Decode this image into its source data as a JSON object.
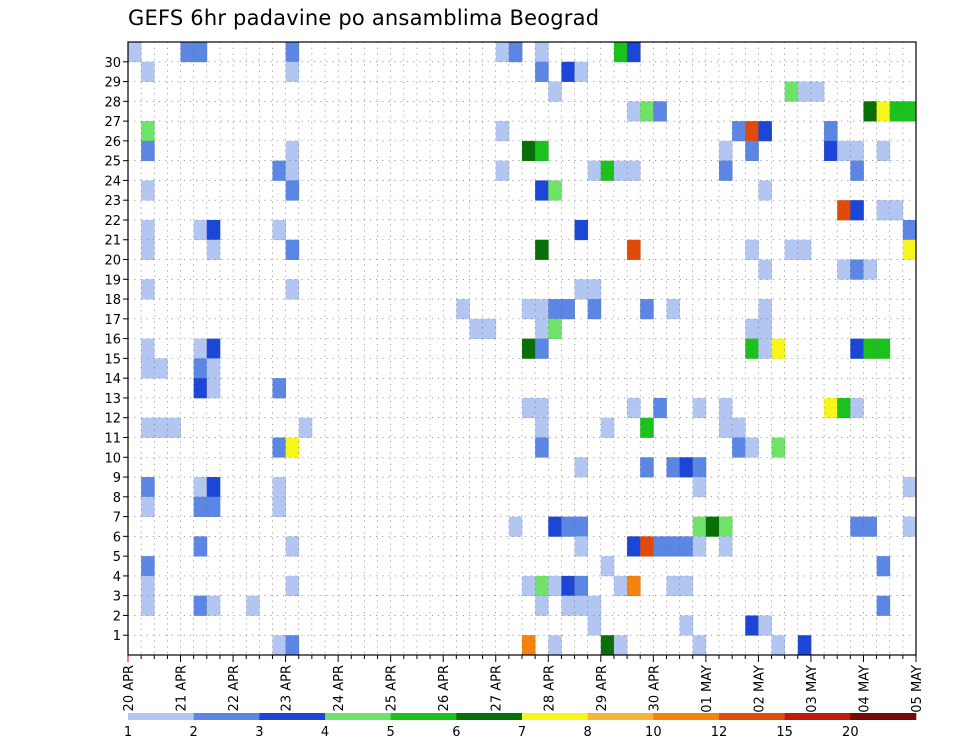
{
  "chart_data": {
    "type": "heatmap",
    "title": "GEFS 6hr padavine po ansamblima Beograd",
    "xlabel": "",
    "ylabel": "",
    "y_members": [
      1,
      2,
      3,
      4,
      5,
      6,
      7,
      8,
      9,
      10,
      11,
      12,
      13,
      14,
      15,
      16,
      17,
      18,
      19,
      20,
      21,
      22,
      23,
      24,
      25,
      26,
      27,
      28,
      29,
      30
    ],
    "ylim": [
      0,
      30
    ],
    "x_start": "2020-04-20 00UTC",
    "x_step_hours": 6,
    "x_steps": 60,
    "x_tick_labels": [
      "20 APR",
      "21 APR",
      "22 APR",
      "23 APR",
      "24 APR",
      "25 APR",
      "26 APR",
      "27 APR",
      "28 APR",
      "29 APR",
      "30 APR",
      "01 MAY",
      "02 MAY",
      "03 MAY",
      "04 MAY",
      "05 MAY"
    ],
    "grid": true,
    "colorbar": {
      "labels": [
        "1",
        "2",
        "3",
        "4",
        "5",
        "6",
        "7",
        "8",
        "10",
        "12",
        "15",
        "20"
      ],
      "colors": [
        "#b3c6f2",
        "#5b86e3",
        "#1c46d6",
        "#6fe26a",
        "#1cc21c",
        "#097009",
        "#f6f61c",
        "#f5b53a",
        "#f3830c",
        "#e04a0b",
        "#c01a0a",
        "#7a0a0a"
      ]
    },
    "cells": [
      [
        1,
        0,
        30,
        1
      ],
      [
        1,
        4,
        30,
        2
      ],
      [
        1,
        5,
        30,
        2
      ],
      [
        1,
        12,
        30,
        2
      ],
      [
        1,
        28,
        30,
        1
      ],
      [
        1,
        29,
        30,
        2
      ],
      [
        1,
        31,
        30,
        1
      ],
      [
        1,
        37,
        30,
        5
      ],
      [
        1,
        38,
        30,
        3
      ],
      [
        1,
        1,
        29,
        1
      ],
      [
        1,
        12,
        29,
        1
      ],
      [
        1,
        31,
        29,
        2
      ],
      [
        1,
        33,
        29,
        3
      ],
      [
        1,
        34,
        29,
        1
      ],
      [
        1,
        32,
        28,
        1
      ],
      [
        1,
        50,
        28,
        4
      ],
      [
        1,
        51,
        28,
        1
      ],
      [
        1,
        52,
        28,
        1
      ],
      [
        1,
        38,
        27,
        1
      ],
      [
        1,
        39,
        27,
        4
      ],
      [
        1,
        40,
        27,
        2
      ],
      [
        1,
        56,
        27,
        6
      ],
      [
        1,
        57,
        27,
        7
      ],
      [
        1,
        58,
        27,
        5
      ],
      [
        1,
        59,
        27,
        5
      ],
      [
        1,
        1,
        26,
        4
      ],
      [
        1,
        28,
        26,
        1
      ],
      [
        1,
        46,
        26,
        2
      ],
      [
        1,
        47,
        26,
        10
      ],
      [
        1,
        48,
        26,
        3
      ],
      [
        1,
        53,
        26,
        2
      ],
      [
        1,
        1,
        25,
        2
      ],
      [
        1,
        12,
        25,
        1
      ],
      [
        1,
        30,
        25,
        6
      ],
      [
        1,
        31,
        25,
        5
      ],
      [
        1,
        45,
        25,
        1
      ],
      [
        1,
        47,
        25,
        2
      ],
      [
        1,
        53,
        25,
        3
      ],
      [
        1,
        54,
        25,
        1
      ],
      [
        1,
        55,
        25,
        1
      ],
      [
        1,
        57,
        25,
        1
      ],
      [
        1,
        11,
        24,
        2
      ],
      [
        1,
        12,
        24,
        1
      ],
      [
        1,
        28,
        24,
        1
      ],
      [
        1,
        35,
        24,
        1
      ],
      [
        1,
        36,
        24,
        5
      ],
      [
        1,
        37,
        24,
        1
      ],
      [
        1,
        38,
        24,
        1
      ],
      [
        1,
        45,
        24,
        2
      ],
      [
        1,
        55,
        24,
        2
      ],
      [
        1,
        1,
        23,
        1
      ],
      [
        1,
        12,
        23,
        2
      ],
      [
        1,
        31,
        23,
        3
      ],
      [
        1,
        32,
        23,
        4
      ],
      [
        1,
        48,
        23,
        1
      ],
      [
        1,
        54,
        22,
        10
      ],
      [
        1,
        55,
        22,
        3
      ],
      [
        1,
        57,
        22,
        1
      ],
      [
        1,
        58,
        22,
        1
      ],
      [
        1,
        1,
        21,
        1
      ],
      [
        1,
        5,
        21,
        1
      ],
      [
        1,
        6,
        21,
        3
      ],
      [
        1,
        11,
        21,
        1
      ],
      [
        1,
        34,
        21,
        3
      ],
      [
        1,
        59,
        21,
        2
      ],
      [
        1,
        1,
        20,
        1
      ],
      [
        1,
        6,
        20,
        1
      ],
      [
        1,
        12,
        20,
        2
      ],
      [
        1,
        31,
        20,
        6
      ],
      [
        1,
        38,
        20,
        10
      ],
      [
        1,
        47,
        20,
        1
      ],
      [
        1,
        50,
        20,
        1
      ],
      [
        1,
        51,
        20,
        1
      ],
      [
        1,
        59,
        20,
        7
      ],
      [
        1,
        48,
        19,
        1
      ],
      [
        1,
        54,
        19,
        1
      ],
      [
        1,
        55,
        19,
        2
      ],
      [
        1,
        56,
        19,
        1
      ],
      [
        1,
        1,
        18,
        1
      ],
      [
        1,
        12,
        18,
        1
      ],
      [
        1,
        34,
        18,
        1
      ],
      [
        1,
        35,
        18,
        1
      ],
      [
        1,
        25,
        17,
        1
      ],
      [
        1,
        30,
        17,
        1
      ],
      [
        1,
        31,
        17,
        1
      ],
      [
        1,
        32,
        17,
        2
      ],
      [
        1,
        33,
        17,
        2
      ],
      [
        1,
        35,
        17,
        2
      ],
      [
        1,
        39,
        17,
        2
      ],
      [
        1,
        41,
        17,
        1
      ],
      [
        1,
        48,
        17,
        1
      ],
      [
        1,
        26,
        16,
        1
      ],
      [
        1,
        27,
        16,
        1
      ],
      [
        1,
        31,
        16,
        1
      ],
      [
        1,
        32,
        16,
        4
      ],
      [
        1,
        47,
        16,
        1
      ],
      [
        1,
        48,
        16,
        1
      ],
      [
        1,
        1,
        15,
        1
      ],
      [
        1,
        5,
        15,
        1
      ],
      [
        1,
        6,
        15,
        3
      ],
      [
        1,
        30,
        15,
        6
      ],
      [
        1,
        31,
        15,
        2
      ],
      [
        1,
        47,
        15,
        5
      ],
      [
        1,
        48,
        15,
        1
      ],
      [
        1,
        49,
        15,
        7
      ],
      [
        1,
        55,
        15,
        3
      ],
      [
        1,
        56,
        15,
        5
      ],
      [
        1,
        57,
        15,
        5
      ],
      [
        1,
        1,
        14,
        1
      ],
      [
        1,
        2,
        14,
        1
      ],
      [
        1,
        5,
        14,
        2
      ],
      [
        1,
        6,
        14,
        1
      ],
      [
        1,
        5,
        13,
        3
      ],
      [
        1,
        6,
        13,
        1
      ],
      [
        1,
        11,
        13,
        2
      ],
      [
        1,
        30,
        12,
        1
      ],
      [
        1,
        31,
        12,
        1
      ],
      [
        1,
        38,
        12,
        1
      ],
      [
        1,
        40,
        12,
        2
      ],
      [
        1,
        43,
        12,
        1
      ],
      [
        1,
        45,
        12,
        1
      ],
      [
        1,
        53,
        12,
        7
      ],
      [
        1,
        54,
        12,
        5
      ],
      [
        1,
        55,
        12,
        1
      ],
      [
        1,
        1,
        11,
        1
      ],
      [
        1,
        2,
        11,
        1
      ],
      [
        1,
        3,
        11,
        1
      ],
      [
        1,
        13,
        11,
        1
      ],
      [
        1,
        31,
        11,
        1
      ],
      [
        1,
        36,
        11,
        1
      ],
      [
        1,
        39,
        11,
        5
      ],
      [
        1,
        45,
        11,
        1
      ],
      [
        1,
        46,
        11,
        1
      ],
      [
        1,
        11,
        10,
        2
      ],
      [
        1,
        12,
        10,
        7
      ],
      [
        1,
        31,
        10,
        2
      ],
      [
        1,
        46,
        10,
        2
      ],
      [
        1,
        47,
        10,
        1
      ],
      [
        1,
        49,
        10,
        4
      ],
      [
        1,
        34,
        9,
        1
      ],
      [
        1,
        39,
        9,
        2
      ],
      [
        1,
        41,
        9,
        2
      ],
      [
        1,
        42,
        9,
        3
      ],
      [
        1,
        43,
        9,
        2
      ],
      [
        1,
        1,
        8,
        2
      ],
      [
        1,
        5,
        8,
        1
      ],
      [
        1,
        6,
        8,
        3
      ],
      [
        1,
        11,
        8,
        1
      ],
      [
        1,
        43,
        8,
        1
      ],
      [
        1,
        59,
        8,
        1
      ],
      [
        1,
        1,
        7,
        1
      ],
      [
        1,
        5,
        7,
        2
      ],
      [
        1,
        6,
        7,
        2
      ],
      [
        1,
        11,
        7,
        1
      ],
      [
        1,
        29,
        6,
        1
      ],
      [
        1,
        32,
        6,
        3
      ],
      [
        1,
        33,
        6,
        2
      ],
      [
        1,
        34,
        6,
        2
      ],
      [
        1,
        43,
        6,
        4
      ],
      [
        1,
        44,
        6,
        6
      ],
      [
        1,
        45,
        6,
        4
      ],
      [
        1,
        55,
        6,
        2
      ],
      [
        1,
        56,
        6,
        2
      ],
      [
        1,
        59,
        6,
        1
      ],
      [
        1,
        5,
        5,
        2
      ],
      [
        1,
        12,
        5,
        1
      ],
      [
        1,
        34,
        5,
        1
      ],
      [
        1,
        38,
        5,
        3
      ],
      [
        1,
        39,
        5,
        10
      ],
      [
        1,
        40,
        5,
        2
      ],
      [
        1,
        41,
        5,
        2
      ],
      [
        1,
        42,
        5,
        2
      ],
      [
        1,
        43,
        5,
        1
      ],
      [
        1,
        45,
        5,
        1
      ],
      [
        1,
        1,
        4,
        2
      ],
      [
        1,
        36,
        4,
        1
      ],
      [
        1,
        57,
        4,
        2
      ],
      [
        1,
        1,
        3,
        1
      ],
      [
        1,
        12,
        3,
        1
      ],
      [
        1,
        30,
        3,
        1
      ],
      [
        1,
        31,
        3,
        4
      ],
      [
        1,
        32,
        3,
        1
      ],
      [
        1,
        33,
        3,
        3
      ],
      [
        1,
        34,
        3,
        2
      ],
      [
        1,
        37,
        3,
        1
      ],
      [
        1,
        38,
        3,
        9
      ],
      [
        1,
        41,
        3,
        1
      ],
      [
        1,
        42,
        3,
        1
      ],
      [
        1,
        1,
        2,
        1
      ],
      [
        1,
        5,
        2,
        2
      ],
      [
        1,
        6,
        2,
        1
      ],
      [
        1,
        9,
        2,
        1
      ],
      [
        1,
        31,
        2,
        1
      ],
      [
        1,
        33,
        2,
        1
      ],
      [
        1,
        34,
        2,
        1
      ],
      [
        1,
        35,
        2,
        1
      ],
      [
        1,
        57,
        2,
        2
      ],
      [
        1,
        35,
        1,
        1
      ],
      [
        1,
        42,
        1,
        1
      ],
      [
        1,
        47,
        1,
        3
      ],
      [
        1,
        48,
        1,
        1
      ],
      [
        1,
        11,
        0,
        1
      ],
      [
        1,
        12,
        0,
        2
      ],
      [
        1,
        30,
        0,
        9
      ],
      [
        1,
        32,
        0,
        1
      ],
      [
        1,
        36,
        0,
        6
      ],
      [
        1,
        37,
        0,
        1
      ],
      [
        1,
        43,
        0,
        1
      ],
      [
        1,
        49,
        0,
        1
      ],
      [
        1,
        51,
        0,
        3
      ]
    ]
  }
}
